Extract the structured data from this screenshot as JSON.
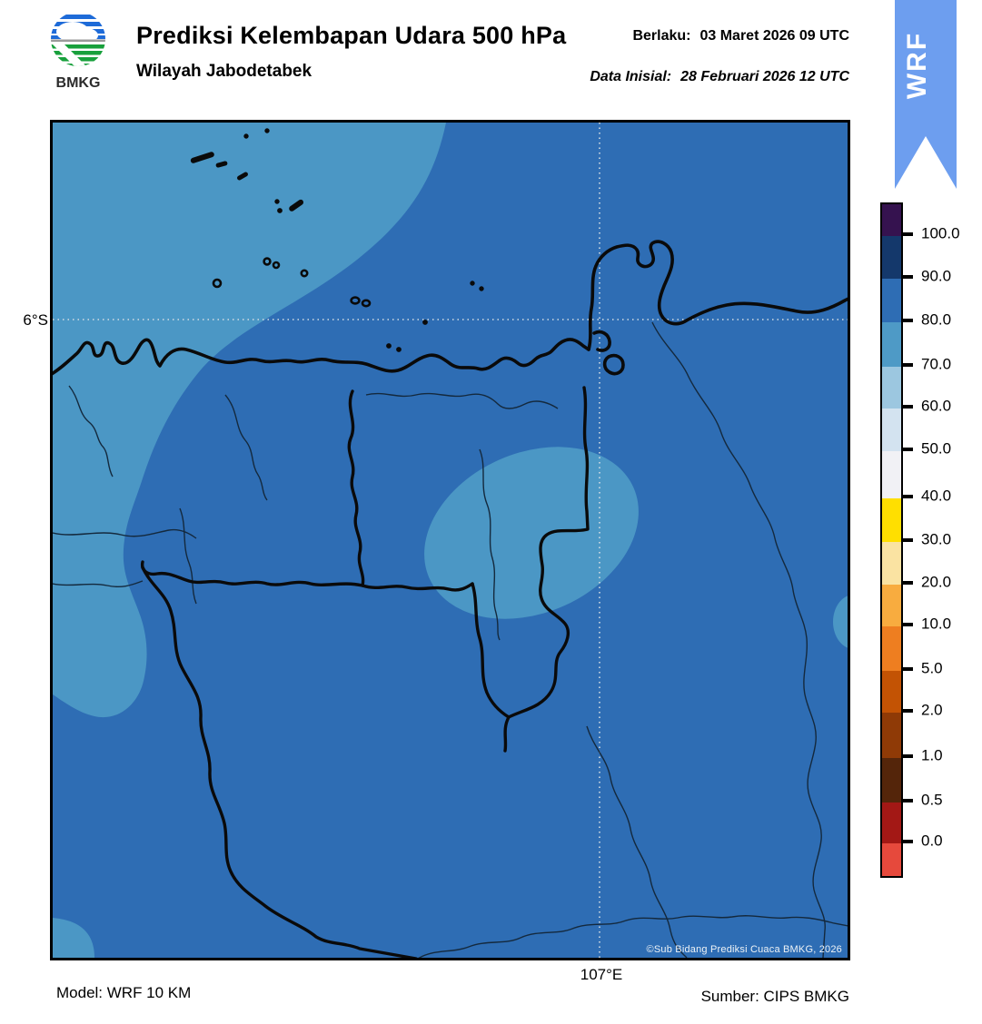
{
  "header": {
    "logo_label": "BMKG",
    "title": "Prediksi Kelembapan Udara 500 hPa",
    "subtitle": "Wilayah Jabodetabek",
    "valid_label": "Berlaku:",
    "valid_value": "03 Maret 2026 09 UTC",
    "init_label": "Data Inisial:",
    "init_value": "28 Februari 2026 12 UTC",
    "ribbon_text": "WRF",
    "ribbon_color": "#6D9EEF"
  },
  "map": {
    "lat_label": "6°S",
    "lon_label": "107°E",
    "copyright": "©Sub Bidang Prediksi Cuaca BMKG, 2026",
    "colors": {
      "sea_80_90": "#2E6DB4",
      "shade_70_80": "#4B97C5",
      "coastline": "#0a0a0a",
      "admin_line": "#14293d",
      "gridline": "#d4dde4"
    }
  },
  "colorbar": {
    "tick_labels": [
      "100.0",
      "90.0",
      "80.0",
      "70.0",
      "60.0",
      "50.0",
      "40.0",
      "30.0",
      "20.0",
      "10.0",
      "5.0",
      "2.0",
      "1.0",
      "0.5",
      "0.0"
    ],
    "segment_colors": [
      "#35124F",
      "#14386B",
      "#2E6DB4",
      "#4E9AC6",
      "#9CC7E0",
      "#D3E3F0",
      "#F1F1F5",
      "#FFDF00",
      "#FAE3A2",
      "#F8AC3F",
      "#EE7E20",
      "#C35304",
      "#8F3A06",
      "#54250A",
      "#A31815",
      "#E6493C"
    ]
  },
  "footer": {
    "model": "Model: WRF 10 KM",
    "source": "Sumber: CIPS BMKG"
  },
  "chart_data": {
    "type": "heatmap",
    "title": "Prediksi Kelembapan Udara 500 hPa",
    "region": "Wilayah Jabodetabek",
    "valid_time": "03 Maret 2026 09 UTC",
    "initial_time": "28 Februari 2026 12 UTC",
    "units": "%",
    "levels": [
      0.0,
      0.5,
      1.0,
      2.0,
      5.0,
      10.0,
      20.0,
      30.0,
      40.0,
      50.0,
      60.0,
      70.0,
      80.0,
      90.0,
      100.0
    ],
    "legend_position": "right",
    "gridlines": {
      "lat": [
        "6°S"
      ],
      "lon": [
        "107°E"
      ]
    },
    "depicted_field": [
      {
        "area": "most of map (background)",
        "value_range": "80-90"
      },
      {
        "area": "northwest corner extending down west edge",
        "value_range": "70-80"
      },
      {
        "area": "west-edge bulge mid map",
        "value_range": "70-80"
      },
      {
        "area": "central rotated ellipse",
        "value_range": "70-80"
      },
      {
        "area": "small patch on east edge",
        "value_range": "70-80"
      },
      {
        "area": "bottom-left corner patch",
        "value_range": "70-80"
      }
    ]
  }
}
